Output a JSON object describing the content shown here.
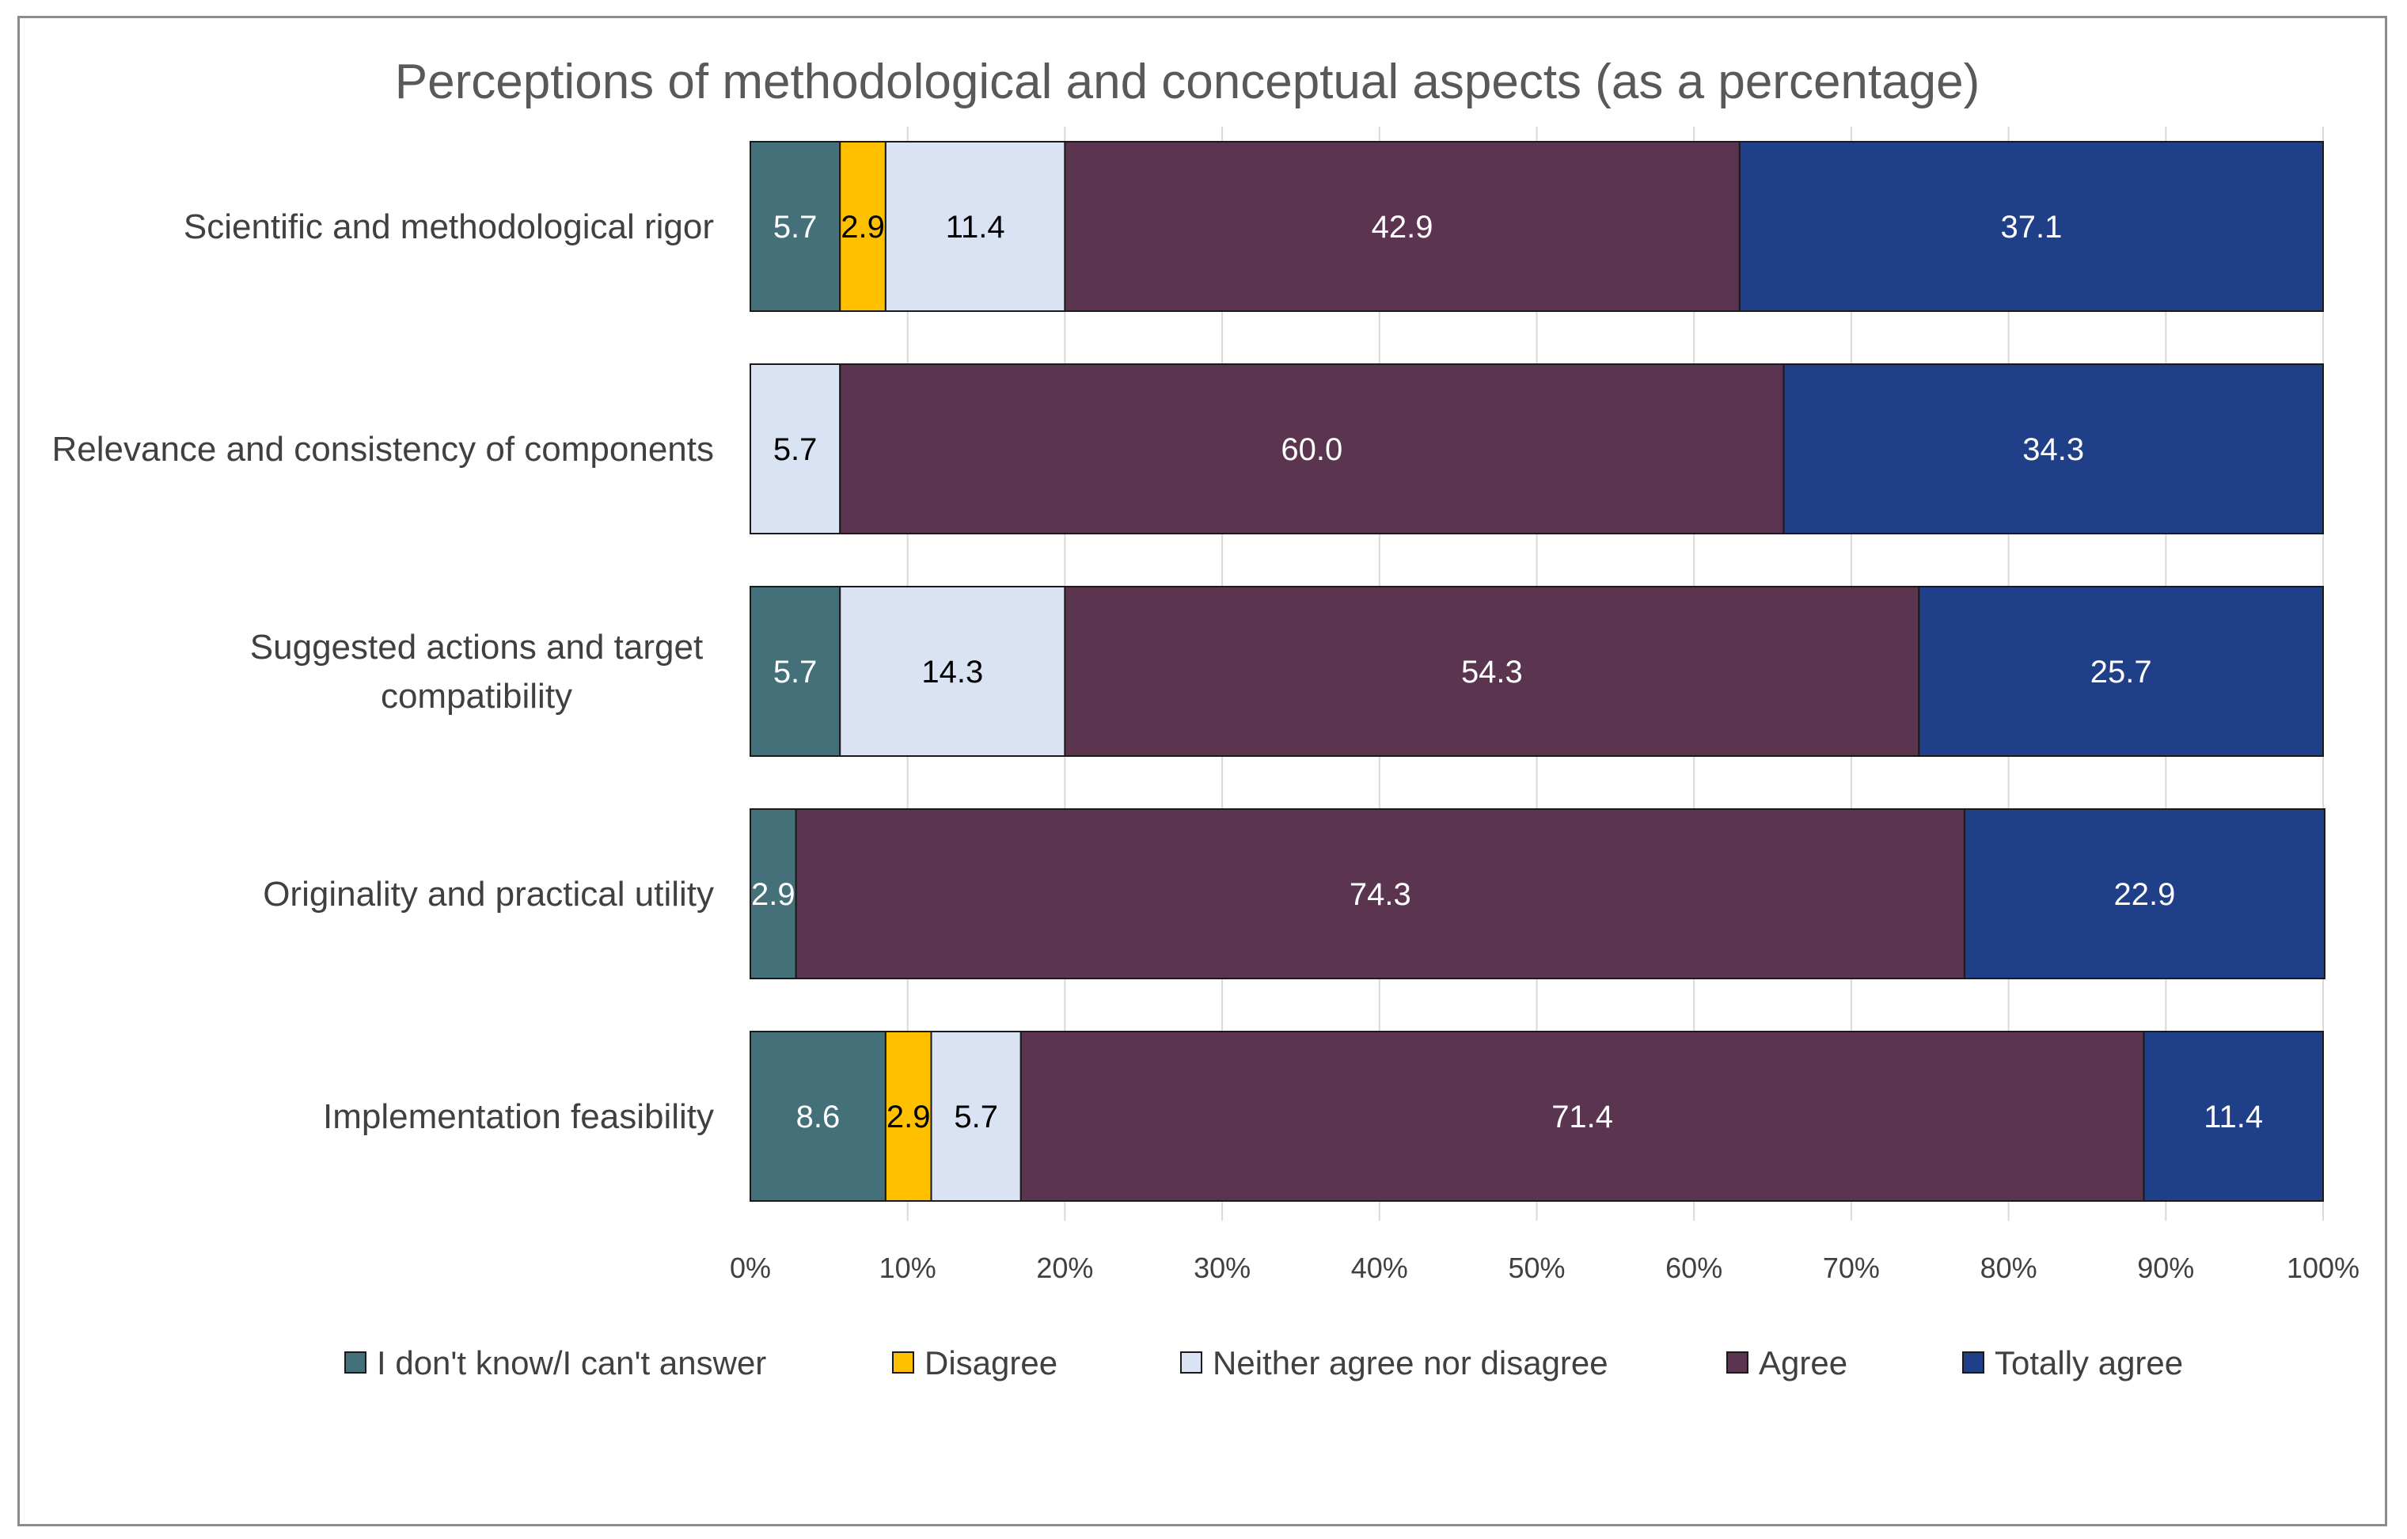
{
  "chart_data": {
    "type": "bar",
    "orientation": "horizontal",
    "stacked": "percent",
    "title": "Perceptions of methodological and conceptual aspects (as a percentage)",
    "categories": [
      [
        "Scientific and methodological rigor"
      ],
      [
        "Relevance and consistency of components"
      ],
      [
        "Suggested actions and target",
        "compatibility"
      ],
      [
        "Originality and practical utility"
      ],
      [
        "Implementation feasibility"
      ]
    ],
    "series": [
      {
        "name": "I don't know/I can't answer",
        "color": "#44707A",
        "label_color": "#ffffff",
        "values": [
          5.7,
          0,
          5.7,
          2.9,
          8.6
        ]
      },
      {
        "name": "Disagree",
        "color": "#FFC000",
        "label_color": "#000000",
        "values": [
          2.9,
          0,
          0,
          0,
          2.9
        ]
      },
      {
        "name": "Neither agree nor disagree",
        "color": "#DAE3F3",
        "label_color": "#000000",
        "values": [
          11.4,
          5.7,
          14.3,
          0,
          5.7
        ]
      },
      {
        "name": "Agree",
        "color": "#5B3550",
        "label_color": "#ffffff",
        "values": [
          42.9,
          60.0,
          54.3,
          74.3,
          71.4
        ]
      },
      {
        "name": "Totally agree",
        "color": "#1F3F88",
        "label_color": "#ffffff",
        "values": [
          37.1,
          34.3,
          25.7,
          22.9,
          11.4
        ]
      }
    ],
    "x_ticks": [
      "0%",
      "10%",
      "20%",
      "30%",
      "40%",
      "50%",
      "60%",
      "70%",
      "80%",
      "90%",
      "100%"
    ],
    "xlim": [
      0,
      100
    ],
    "xlabel": "",
    "ylabel": "",
    "grid": "vertical",
    "legend": "bottom"
  }
}
